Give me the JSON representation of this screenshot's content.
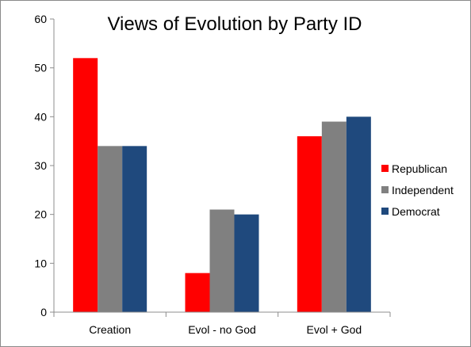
{
  "chart_data": {
    "type": "bar",
    "title": "Views of Evolution by Party ID",
    "xlabel": "",
    "ylabel": "",
    "ylim": [
      0,
      60
    ],
    "yticks": [
      0,
      10,
      20,
      30,
      40,
      50,
      60
    ],
    "grid": false,
    "legend_position": "right",
    "categories": [
      "Creation",
      "Evol - no God",
      "Evol + God"
    ],
    "series": [
      {
        "name": "Republican",
        "color": "#ff0000",
        "values": [
          52,
          8,
          36
        ]
      },
      {
        "name": "Independent",
        "color": "#808080",
        "values": [
          34,
          21,
          39
        ]
      },
      {
        "name": "Democrat",
        "color": "#1f497d",
        "values": [
          34,
          20,
          40
        ]
      }
    ]
  }
}
